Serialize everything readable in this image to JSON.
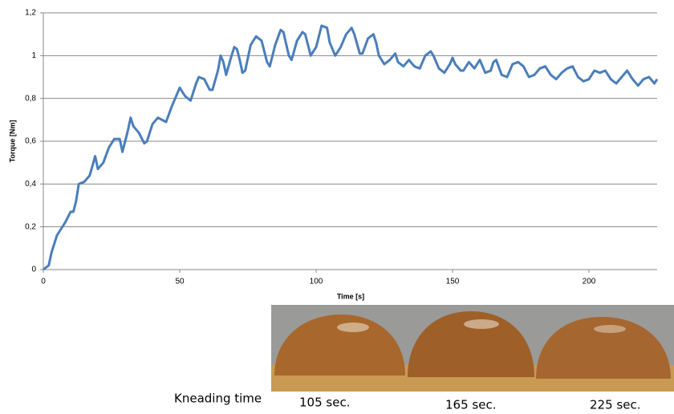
{
  "chart_data": {
    "type": "line",
    "xlabel": "Time [s]",
    "ylabel": "Torque [Nm]",
    "x": [
      0,
      2,
      3,
      5,
      6,
      8,
      10,
      11,
      12,
      13,
      15,
      17,
      19,
      20,
      22,
      24,
      26,
      28,
      29,
      31,
      32,
      33,
      35,
      37,
      38,
      40,
      42,
      45,
      47,
      49,
      50,
      52,
      54,
      56,
      57,
      59,
      61,
      62,
      64,
      65,
      66,
      67,
      69,
      70,
      71,
      72,
      73,
      74,
      76,
      78,
      80,
      82,
      83,
      85,
      87,
      88,
      90,
      91,
      93,
      95,
      96,
      98,
      100,
      102,
      104,
      105,
      107,
      109,
      111,
      113,
      114,
      116,
      117,
      119,
      121,
      122,
      123,
      125,
      127,
      129,
      130,
      132,
      134,
      136,
      138,
      140,
      142,
      143,
      145,
      147,
      149,
      150,
      151,
      153,
      154,
      156,
      158,
      159,
      160,
      162,
      164,
      165,
      166,
      168,
      170,
      172,
      174,
      176,
      178,
      180,
      182,
      184,
      186,
      188,
      190,
      192,
      194,
      196,
      198,
      200,
      202,
      204,
      206,
      208,
      210,
      212,
      214,
      216,
      218,
      220,
      222,
      224,
      225
    ],
    "values": [
      0,
      0.02,
      0.08,
      0.16,
      0.18,
      0.22,
      0.27,
      0.27,
      0.32,
      0.4,
      0.41,
      0.44,
      0.53,
      0.47,
      0.5,
      0.57,
      0.61,
      0.61,
      0.55,
      0.65,
      0.71,
      0.67,
      0.64,
      0.59,
      0.6,
      0.68,
      0.71,
      0.69,
      0.76,
      0.82,
      0.85,
      0.81,
      0.79,
      0.87,
      0.9,
      0.89,
      0.84,
      0.84,
      0.93,
      1.0,
      0.97,
      0.91,
      1.0,
      1.04,
      1.03,
      0.98,
      0.92,
      0.93,
      1.05,
      1.09,
      1.07,
      0.97,
      0.95,
      1.05,
      1.12,
      1.11,
      1.0,
      0.98,
      1.07,
      1.11,
      1.1,
      1.0,
      1.04,
      1.14,
      1.13,
      1.06,
      1.0,
      1.04,
      1.1,
      1.13,
      1.1,
      1.01,
      1.01,
      1.08,
      1.1,
      1.06,
      1.0,
      0.96,
      0.98,
      1.01,
      0.97,
      0.95,
      0.98,
      0.95,
      0.94,
      1.0,
      1.02,
      1.0,
      0.94,
      0.92,
      0.96,
      0.99,
      0.96,
      0.93,
      0.93,
      0.97,
      0.94,
      0.96,
      0.98,
      0.92,
      0.93,
      0.97,
      0.98,
      0.91,
      0.9,
      0.96,
      0.97,
      0.95,
      0.9,
      0.91,
      0.94,
      0.95,
      0.91,
      0.89,
      0.92,
      0.94,
      0.95,
      0.9,
      0.88,
      0.89,
      0.93,
      0.92,
      0.93,
      0.89,
      0.87,
      0.9,
      0.93,
      0.89,
      0.86,
      0.89,
      0.9,
      0.87,
      0.89
    ],
    "color": "#4a7ebb",
    "xlim": [
      0,
      225
    ],
    "xticks": [
      0,
      50,
      100,
      150,
      200
    ],
    "ylim": [
      0,
      1.2
    ],
    "yticks": [
      0,
      {
        "value": 0.2,
        "label": "0,2"
      },
      {
        "value": 0.4,
        "label": "0,4"
      },
      {
        "value": 0.6,
        "label": "0,6"
      },
      {
        "value": 0.8,
        "label": "0,8"
      },
      1,
      {
        "value": 1.2,
        "label": "1,2"
      }
    ],
    "grid": true,
    "annotations": [
      "Kneading time",
      "105 sec.",
      "165 sec.",
      "225 sec."
    ]
  }
}
